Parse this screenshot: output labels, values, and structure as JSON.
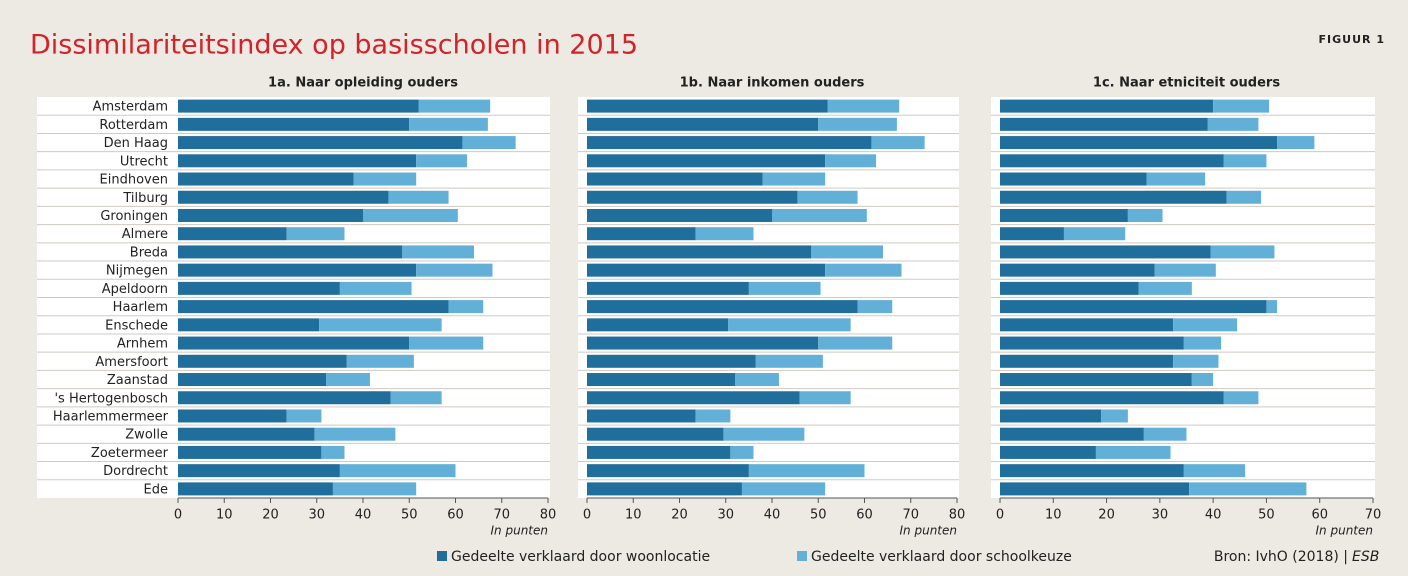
{
  "title": "Dissimilariteitsindex op basisscholen in 2015",
  "figure_label": "FIGUUR 1",
  "source": "Bron: IvhO (2018) |",
  "source_publisher": "ESB",
  "chart_data": [
    {
      "type": "hbar-stacked",
      "title": "1a. Naar opleiding ouders",
      "x_label": "In punten",
      "categories": [
        "Amsterdam",
        "Rotterdam",
        "Den Haag",
        "Utrecht",
        "Eindhoven",
        "Tilburg",
        "Groningen",
        "Almere",
        "Breda",
        "Nijmegen",
        "Apeldoorn",
        "Haarlem",
        "Enschede",
        "Arnhem",
        "Amersfoort",
        "Zaanstad",
        "'s Hertogenbosch",
        "Haarlemmermeer",
        "Zwolle",
        "Zoetermeer",
        "Dordrecht",
        "Ede"
      ],
      "series": [
        {
          "name": "Gedeelte verklaard door woonlocatie",
          "color": "#1f6e9c",
          "values": [
            52,
            50,
            61.5,
            51.5,
            38,
            45.5,
            40,
            23.5,
            48.5,
            51.5,
            35,
            58.5,
            30.5,
            50,
            36.5,
            32,
            46,
            23.5,
            29.5,
            31,
            35,
            33.5
          ]
        },
        {
          "name": "Gedeelte verklaard door schoolkeuze",
          "color": "#62afd8",
          "values": [
            15.5,
            17,
            11.5,
            11,
            13.5,
            13,
            20.5,
            12.5,
            15.5,
            16.5,
            15.5,
            7.5,
            26.5,
            16,
            14.5,
            9.5,
            11,
            7.5,
            17.5,
            5,
            25,
            18
          ]
        }
      ],
      "xlim": [
        0,
        80
      ],
      "xticks": [
        0,
        10,
        20,
        30,
        40,
        50,
        60,
        70,
        80
      ]
    },
    {
      "type": "hbar-stacked",
      "title": "1b. Naar inkomen ouders",
      "x_label": "In punten",
      "series": [
        {
          "color": "#1f6e9c",
          "values": [
            52,
            50,
            61.5,
            51.5,
            38,
            45.5,
            40,
            23.5,
            48.5,
            51.5,
            35,
            58.5,
            30.5,
            50,
            36.5,
            32,
            46,
            23.5,
            29.5,
            31,
            35,
            33.5
          ]
        },
        {
          "color": "#62afd8",
          "values": [
            15.5,
            17,
            11.5,
            11,
            13.5,
            13,
            20.5,
            12.5,
            15.5,
            16.5,
            15.5,
            7.5,
            26.5,
            16,
            14.5,
            9.5,
            11,
            7.5,
            17.5,
            5,
            25,
            18
          ]
        }
      ],
      "xlim": [
        0,
        80
      ],
      "xticks": [
        0,
        10,
        20,
        30,
        40,
        50,
        60,
        70,
        80
      ]
    },
    {
      "type": "hbar-stacked",
      "title": "1c. Naar etniciteit ouders",
      "x_label": "In punten",
      "series": [
        {
          "color": "#1f6e9c",
          "values": [
            40,
            39,
            52,
            42,
            27.5,
            42.5,
            24,
            12,
            39.5,
            29,
            26,
            50,
            32.5,
            34.5,
            32.5,
            36,
            42,
            19,
            27,
            18,
            34.5,
            35.5
          ]
        },
        {
          "color": "#62afd8",
          "values": [
            10.5,
            9.5,
            7,
            8,
            11,
            6.5,
            6.5,
            11.5,
            12,
            11.5,
            10,
            2,
            12,
            7,
            8.5,
            4,
            6.5,
            5,
            8,
            14,
            11.5,
            22
          ]
        }
      ],
      "xlim": [
        0,
        70
      ],
      "xticks": [
        0,
        10,
        20,
        30,
        40,
        50,
        60,
        70
      ]
    }
  ]
}
